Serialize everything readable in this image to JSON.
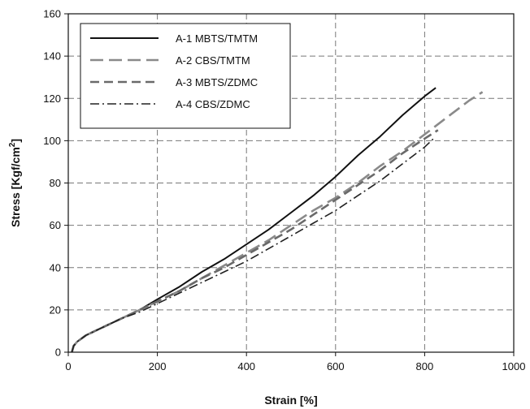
{
  "chart_data": {
    "type": "line",
    "title": "",
    "xlabel": "Strain [%]",
    "ylabel_main": "Stress [Kgf/cm",
    "ylabel_sup": "2",
    "ylabel_close": "]",
    "xlim": [
      0,
      1000
    ],
    "ylim": [
      0,
      160
    ],
    "x_ticks": [
      0,
      200,
      400,
      600,
      800,
      1000
    ],
    "y_ticks": [
      0,
      20,
      40,
      60,
      80,
      100,
      120,
      140,
      160
    ],
    "x_tick_labels": [
      "0",
      "200",
      "400",
      "600",
      "800",
      "1000"
    ],
    "y_tick_labels": [
      "0",
      "20",
      "40",
      "60",
      "80",
      "100",
      "120",
      "140",
      "160"
    ],
    "grid": true,
    "legend_position": "top-left",
    "series": [
      {
        "name": "A-1 MBTS/TMTM",
        "color": "#111111",
        "dash": "solid",
        "points": [
          [
            8,
            0
          ],
          [
            12,
            3
          ],
          [
            20,
            5
          ],
          [
            40,
            8
          ],
          [
            80,
            12
          ],
          [
            120,
            16
          ],
          [
            160,
            20
          ],
          [
            200,
            25
          ],
          [
            250,
            31
          ],
          [
            300,
            38
          ],
          [
            350,
            44
          ],
          [
            400,
            51
          ],
          [
            450,
            58
          ],
          [
            500,
            66
          ],
          [
            550,
            74
          ],
          [
            600,
            83
          ],
          [
            650,
            93
          ],
          [
            700,
            102
          ],
          [
            750,
            112
          ],
          [
            800,
            121
          ],
          [
            825,
            125
          ]
        ]
      },
      {
        "name": "A-2 CBS/TMTM",
        "color": "#8a8a8a",
        "dash": "long-dash",
        "points": [
          [
            8,
            0
          ],
          [
            12,
            3
          ],
          [
            20,
            5
          ],
          [
            40,
            8
          ],
          [
            80,
            12
          ],
          [
            120,
            16
          ],
          [
            160,
            20
          ],
          [
            200,
            24
          ],
          [
            250,
            29
          ],
          [
            300,
            35
          ],
          [
            350,
            41
          ],
          [
            400,
            47
          ],
          [
            450,
            53
          ],
          [
            500,
            60
          ],
          [
            550,
            67
          ],
          [
            600,
            73
          ],
          [
            650,
            80
          ],
          [
            700,
            88
          ],
          [
            750,
            95
          ],
          [
            800,
            103
          ],
          [
            850,
            111
          ],
          [
            900,
            119
          ],
          [
            930,
            123
          ]
        ]
      },
      {
        "name": "A-3 MBTS/ZDMC",
        "color": "#6a6a6a",
        "dash": "dash",
        "points": [
          [
            8,
            0
          ],
          [
            12,
            3
          ],
          [
            20,
            5
          ],
          [
            40,
            8
          ],
          [
            80,
            12
          ],
          [
            120,
            16
          ],
          [
            160,
            20
          ],
          [
            200,
            24
          ],
          [
            250,
            29
          ],
          [
            300,
            35
          ],
          [
            350,
            40
          ],
          [
            400,
            46
          ],
          [
            450,
            52
          ],
          [
            500,
            58
          ],
          [
            550,
            65
          ],
          [
            600,
            72
          ],
          [
            650,
            79
          ],
          [
            700,
            86
          ],
          [
            750,
            94
          ],
          [
            800,
            101
          ],
          [
            830,
            105
          ]
        ]
      },
      {
        "name": "A-4 CBS/ZDMC",
        "color": "#222222",
        "dash": "dash-dot",
        "points": [
          [
            8,
            0
          ],
          [
            12,
            3
          ],
          [
            20,
            5
          ],
          [
            40,
            8
          ],
          [
            80,
            12
          ],
          [
            120,
            16
          ],
          [
            160,
            19
          ],
          [
            200,
            23
          ],
          [
            250,
            28
          ],
          [
            300,
            33
          ],
          [
            350,
            38
          ],
          [
            400,
            43
          ],
          [
            450,
            49
          ],
          [
            500,
            55
          ],
          [
            550,
            61
          ],
          [
            600,
            67
          ],
          [
            650,
            74
          ],
          [
            700,
            81
          ],
          [
            750,
            89
          ],
          [
            800,
            97
          ],
          [
            820,
            101
          ]
        ]
      }
    ]
  }
}
